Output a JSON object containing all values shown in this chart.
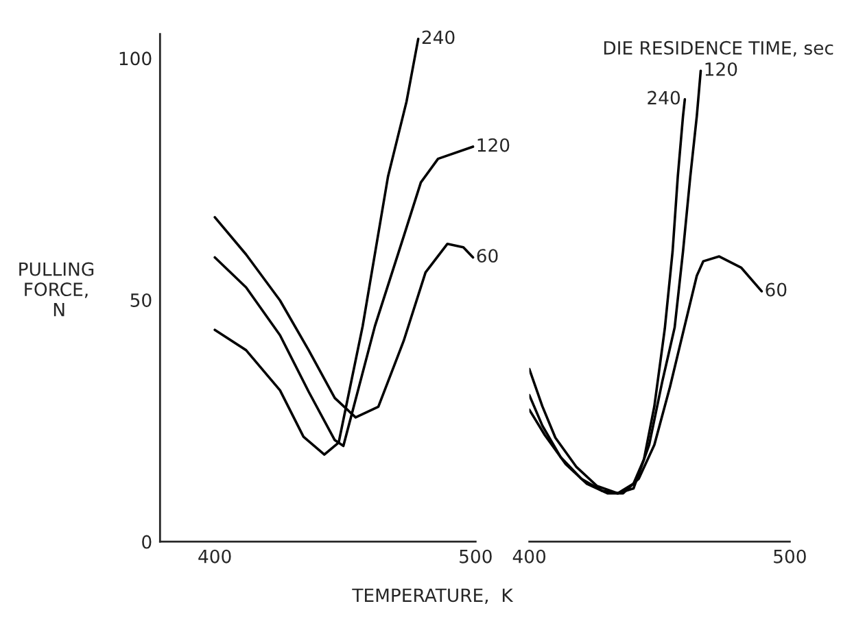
{
  "chart_data": [
    {
      "type": "line",
      "ylabel": "PULLING\nFORCE,\n N",
      "xlabel": "TEMPERATURE,  K",
      "xlim": [
        379,
        500
      ],
      "xticks": [
        400,
        500
      ],
      "ylim": [
        0,
        105
      ],
      "yticks": [
        0,
        50,
        100
      ],
      "grid": false,
      "legend": false,
      "series": [
        {
          "name": "240",
          "color": "#000000",
          "x": [
            400,
            412,
            425,
            434,
            442,
            447.5,
            456.7,
            466.4,
            473.5,
            478
          ],
          "values": [
            43.8,
            39.6,
            31.3,
            21.7,
            18.0,
            20.5,
            44.6,
            75.5,
            91,
            104
          ]
        },
        {
          "name": "120",
          "color": "#000000",
          "x": [
            400,
            412,
            425,
            436,
            446,
            449.3,
            461.4,
            472.4,
            479,
            485.6,
            499
          ],
          "values": [
            58.8,
            52.6,
            42.7,
            31,
            21,
            19.8,
            44.6,
            63.1,
            74.3,
            79.2,
            81.7
          ]
        },
        {
          "name": "60",
          "color": "#000000",
          "x": [
            400,
            412,
            425,
            436,
            446,
            454,
            462.7,
            472.4,
            480.8,
            489.2,
            495.3,
            499
          ],
          "values": [
            67.1,
            59.4,
            49.9,
            39.6,
            29.7,
            25.7,
            27.9,
            41.5,
            55.7,
            61.6,
            60.9,
            58.8
          ]
        }
      ]
    },
    {
      "type": "line",
      "legend_title": "DIE RESIDENCE TIME, sec",
      "xlim": [
        400,
        500
      ],
      "xticks": [
        400,
        500
      ],
      "ylim": [
        0,
        100
      ],
      "yticks": [
        0,
        50,
        100
      ],
      "tick_labels": "x",
      "grid": false,
      "legend": false,
      "series": [
        {
          "name": "240",
          "color": "#000000",
          "x": [
            400,
            405,
            410,
            418,
            426,
            434,
            440,
            444,
            448,
            452,
            455,
            457,
            459,
            459.7
          ],
          "values": [
            35.7,
            28,
            21.5,
            15.5,
            11.5,
            10,
            12,
            17,
            28,
            44,
            60,
            75.5,
            88,
            91.5
          ]
        },
        {
          "name": "120",
          "color": "#000000",
          "x": [
            400,
            405,
            412,
            420,
            428,
            434,
            440,
            446,
            451,
            455.8,
            459,
            461.8,
            464.3,
            465.8
          ],
          "values": [
            30.3,
            24,
            17.5,
            13,
            10.5,
            10,
            11,
            20,
            33,
            44.3,
            60,
            75.5,
            88,
            97.4
          ]
        },
        {
          "name": "60",
          "color": "#000000",
          "x": [
            400,
            406,
            414,
            422,
            430,
            436,
            442,
            448,
            454,
            459.5,
            464.3,
            466.8,
            472.9,
            481.3,
            489.2
          ],
          "values": [
            27.3,
            22,
            16,
            12,
            10,
            10,
            13,
            20,
            32,
            44.3,
            55,
            58,
            59,
            56.7,
            51.8
          ]
        }
      ]
    }
  ]
}
